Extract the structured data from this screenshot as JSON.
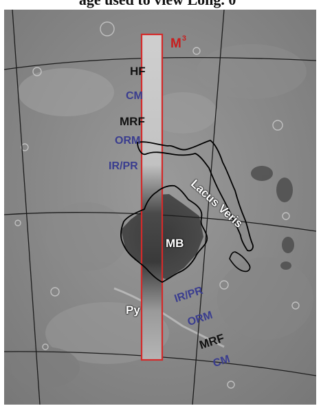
{
  "caption_fragment": "age used to view Long. 0°",
  "instrument": {
    "name": "M",
    "superscript": "3",
    "color": "#c81e1e"
  },
  "units_upper": [
    "HF",
    "CM",
    "MRF",
    "ORM",
    "IR/PR"
  ],
  "units_lower": [
    "IR/PR",
    "ORM",
    "MRF",
    "CM"
  ],
  "features": {
    "lacus_veris": "Lacus Veris",
    "mare_basin": "MB",
    "pyroclastic": "Py"
  },
  "colors": {
    "black_label": "#111111",
    "blue_label": "#3a3d8f",
    "footprint": "#d42a2a",
    "outline": "#000000"
  }
}
